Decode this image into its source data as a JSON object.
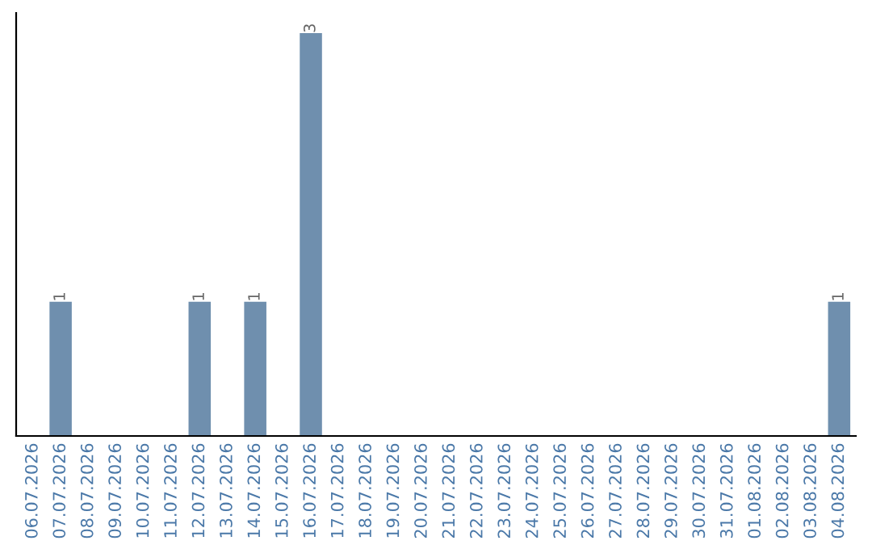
{
  "chart_data": {
    "type": "bar",
    "categories": [
      "06.07.2026",
      "07.07.2026",
      "08.07.2026",
      "09.07.2026",
      "10.07.2026",
      "11.07.2026",
      "12.07.2026",
      "13.07.2026",
      "14.07.2026",
      "15.07.2026",
      "16.07.2026",
      "17.07.2026",
      "18.07.2026",
      "19.07.2026",
      "20.07.2026",
      "21.07.2026",
      "22.07.2026",
      "23.07.2026",
      "24.07.2026",
      "25.07.2026",
      "26.07.2026",
      "27.07.2026",
      "28.07.2026",
      "29.07.2026",
      "30.07.2026",
      "31.07.2026",
      "01.08.2026",
      "02.08.2026",
      "03.08.2026",
      "04.08.2026"
    ],
    "values": [
      0,
      1,
      0,
      0,
      0,
      0,
      1,
      0,
      1,
      0,
      3,
      0,
      0,
      0,
      0,
      0,
      0,
      0,
      0,
      0,
      0,
      0,
      0,
      0,
      0,
      0,
      0,
      0,
      0,
      1
    ],
    "value_labels": [
      null,
      "1",
      null,
      null,
      null,
      null,
      "1",
      null,
      "1",
      null,
      "3",
      null,
      null,
      null,
      null,
      null,
      null,
      null,
      null,
      null,
      null,
      null,
      null,
      null,
      null,
      null,
      null,
      null,
      null,
      "1"
    ],
    "color": "#6f8fae",
    "ylim": [
      0,
      3.15
    ],
    "tick_labels": "x",
    "grid": false,
    "legend": false
  }
}
